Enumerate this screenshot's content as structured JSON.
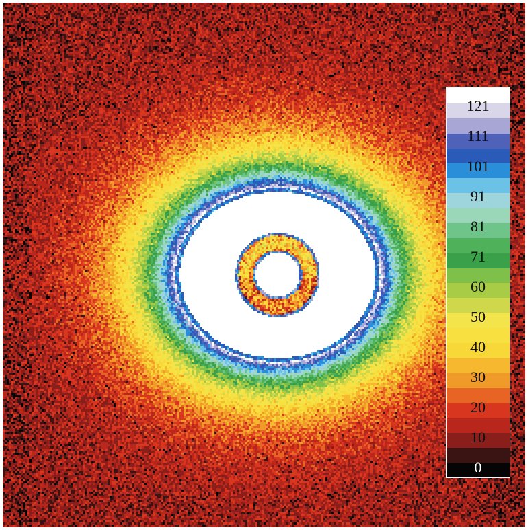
{
  "image": {
    "description_type": "false-color intensity map",
    "colors": {
      "background_noise": "#b8261c",
      "dark_noise": "#5a1714",
      "saturated_center": "#ffffff",
      "edge_blue": "#2a4fb5"
    }
  },
  "colorbar": {
    "labels": [
      "121",
      "111",
      "101",
      "91",
      "81",
      "71",
      "60",
      "50",
      "40",
      "30",
      "20",
      "10",
      "0"
    ],
    "bands": [
      {
        "value": 126,
        "color": "#ffffff"
      },
      {
        "value": 121,
        "color": "#d8d6e8"
      },
      {
        "value": 116,
        "color": "#a8a6d4"
      },
      {
        "value": 111,
        "color": "#4f62b8"
      },
      {
        "value": 106,
        "color": "#2a5bb8"
      },
      {
        "value": 101,
        "color": "#2a8fd8"
      },
      {
        "value": 96,
        "color": "#6cc2e6"
      },
      {
        "value": 91,
        "color": "#9ed4dc"
      },
      {
        "value": 86,
        "color": "#9ad6b8"
      },
      {
        "value": 81,
        "color": "#6fc48a"
      },
      {
        "value": 76,
        "color": "#4fb25a"
      },
      {
        "value": 71,
        "color": "#3aa04a"
      },
      {
        "value": 66,
        "color": "#7ec04a"
      },
      {
        "value": 60,
        "color": "#a8cc46"
      },
      {
        "value": 55,
        "color": "#cfd84a"
      },
      {
        "value": 50,
        "color": "#f2e44a"
      },
      {
        "value": 45,
        "color": "#f8e040"
      },
      {
        "value": 40,
        "color": "#f8d838"
      },
      {
        "value": 35,
        "color": "#f5b82e"
      },
      {
        "value": 30,
        "color": "#f09a2a"
      },
      {
        "value": 25,
        "color": "#e86424"
      },
      {
        "value": 20,
        "color": "#d8361e"
      },
      {
        "value": 15,
        "color": "#b8261c"
      },
      {
        "value": 10,
        "color": "#8a1e1a"
      },
      {
        "value": 5,
        "color": "#3a1412"
      },
      {
        "value": 0,
        "color": "#050505"
      }
    ]
  }
}
